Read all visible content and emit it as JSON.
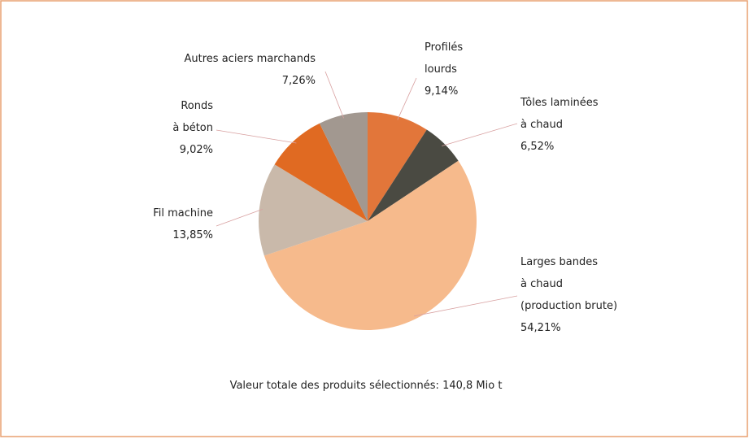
{
  "chart_data": {
    "type": "pie",
    "categories": [
      "Profilés\nlourds",
      "Tôles laminées\nà chaud",
      "Larges bandes\nà chaud\n(production brute)",
      "Fil machine",
      "Ronds\nà béton",
      "Autres aciers marchands"
    ],
    "values": [
      9.14,
      6.52,
      54.21,
      13.85,
      9.02,
      7.26
    ],
    "value_labels": [
      "9,14%",
      "6,52%",
      "54,21%",
      "13,85%",
      "9,02%",
      "7,26%"
    ],
    "colors": [
      "#e2763a",
      "#4a4a42",
      "#f6ba8c",
      "#c9b9aa",
      "#e06a22",
      "#a29890"
    ],
    "note": "Valeur totale des produits sélectionnés: 140,8 Mio t"
  }
}
